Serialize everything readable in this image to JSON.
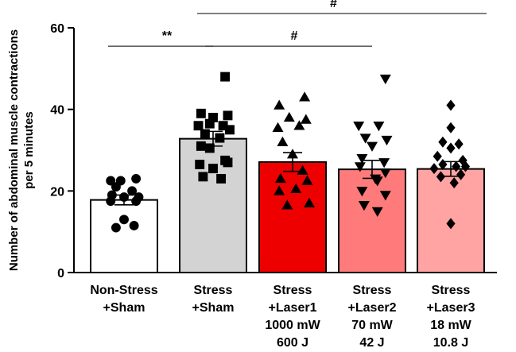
{
  "chart_data": {
    "type": "bar",
    "ylabel": "Number of abdominal muscle contractions per 5 minutes",
    "ylabel_lines": [
      "Number of abdominal muscle contractions",
      "per 5 minutes"
    ],
    "ylim": [
      0,
      60
    ],
    "yticks": [
      0,
      20,
      40,
      60
    ],
    "categories": [
      {
        "lines": [
          "Non-Stress",
          "+Sham"
        ]
      },
      {
        "lines": [
          "Stress",
          "+Sham"
        ]
      },
      {
        "lines": [
          "Stress",
          "+Laser1",
          "1000 mW",
          "600 J"
        ]
      },
      {
        "lines": [
          "Stress",
          "+Laser2",
          "70 mW",
          "42 J"
        ]
      },
      {
        "lines": [
          "Stress",
          "+Laser3",
          "18 mW",
          "10.8 J"
        ]
      }
    ],
    "means": [
      17.8,
      32.8,
      27.1,
      25.3,
      25.4
    ],
    "sem": [
      1.2,
      1.8,
      2.3,
      2.2,
      1.8
    ],
    "colors": [
      "#ffffff",
      "#d3d3d3",
      "#ee0000",
      "#ff7b7b",
      "#ffa3a3"
    ],
    "markers": [
      "circle",
      "square",
      "triangle-up",
      "triangle-down",
      "diamond"
    ],
    "points": [
      [
        [
          -0.2,
          22.5
        ],
        [
          -0.05,
          22.5
        ],
        [
          0.18,
          23
        ],
        [
          -0.12,
          21
        ],
        [
          0.12,
          20
        ],
        [
          -0.18,
          19
        ],
        [
          0.0,
          18.5
        ],
        [
          0.22,
          18.5
        ],
        [
          -0.2,
          17.5
        ],
        [
          0.18,
          17.5
        ],
        [
          0.0,
          13
        ],
        [
          -0.12,
          11
        ],
        [
          0.15,
          11.5
        ]
      ],
      [
        [
          0.18,
          48
        ],
        [
          -0.18,
          39
        ],
        [
          0.0,
          38
        ],
        [
          0.22,
          38.5
        ],
        [
          -0.05,
          36.5
        ],
        [
          0.15,
          36
        ],
        [
          -0.22,
          36
        ],
        [
          0.25,
          35
        ],
        [
          -0.12,
          34
        ],
        [
          0.1,
          33
        ],
        [
          -0.18,
          31
        ],
        [
          -0.05,
          30.5
        ],
        [
          0.18,
          27.5
        ],
        [
          0.22,
          27
        ],
        [
          -0.2,
          26.5
        ],
        [
          0.0,
          25.5
        ],
        [
          -0.15,
          23.5
        ],
        [
          0.12,
          23
        ]
      ],
      [
        [
          -0.2,
          41
        ],
        [
          0.18,
          43
        ],
        [
          -0.05,
          38
        ],
        [
          0.2,
          37.5
        ],
        [
          0.1,
          36
        ],
        [
          -0.22,
          35.5
        ],
        [
          -0.15,
          32
        ],
        [
          0.0,
          29
        ],
        [
          0.15,
          25
        ],
        [
          -0.18,
          23
        ],
        [
          0.22,
          22.5
        ],
        [
          -0.2,
          20
        ],
        [
          0.05,
          20.5
        ],
        [
          0.25,
          17
        ],
        [
          -0.08,
          16.5
        ]
      ],
      [
        [
          0.2,
          47.5
        ],
        [
          -0.2,
          36
        ],
        [
          0.1,
          36
        ],
        [
          -0.1,
          33
        ],
        [
          0.22,
          32.5
        ],
        [
          0.0,
          31
        ],
        [
          -0.15,
          28
        ],
        [
          0.18,
          27
        ],
        [
          -0.18,
          26
        ],
        [
          0.05,
          23
        ],
        [
          0.2,
          24.5
        ],
        [
          0.08,
          22.5
        ],
        [
          -0.15,
          20
        ],
        [
          0.2,
          19
        ],
        [
          -0.12,
          16.5
        ],
        [
          0.08,
          15
        ]
      ],
      [
        [
          0.0,
          41
        ],
        [
          0.0,
          35.5
        ],
        [
          -0.12,
          32
        ],
        [
          0.12,
          31.5
        ],
        [
          0.0,
          30.5
        ],
        [
          -0.2,
          28.5
        ],
        [
          0.18,
          27.5
        ],
        [
          -0.12,
          26.5
        ],
        [
          -0.25,
          25.5
        ],
        [
          0.08,
          26
        ],
        [
          0.22,
          26
        ],
        [
          0.15,
          24
        ],
        [
          -0.15,
          23.5
        ],
        [
          0.05,
          22
        ],
        [
          0.0,
          12
        ]
      ]
    ],
    "significance": [
      {
        "from": 0,
        "to": 1,
        "y": 55.5,
        "label": "**"
      },
      {
        "from": 1,
        "to": 3,
        "y": 55.5,
        "label": "#"
      },
      {
        "from": 1,
        "to": 4,
        "y": 63.5,
        "label": "#"
      }
    ]
  }
}
